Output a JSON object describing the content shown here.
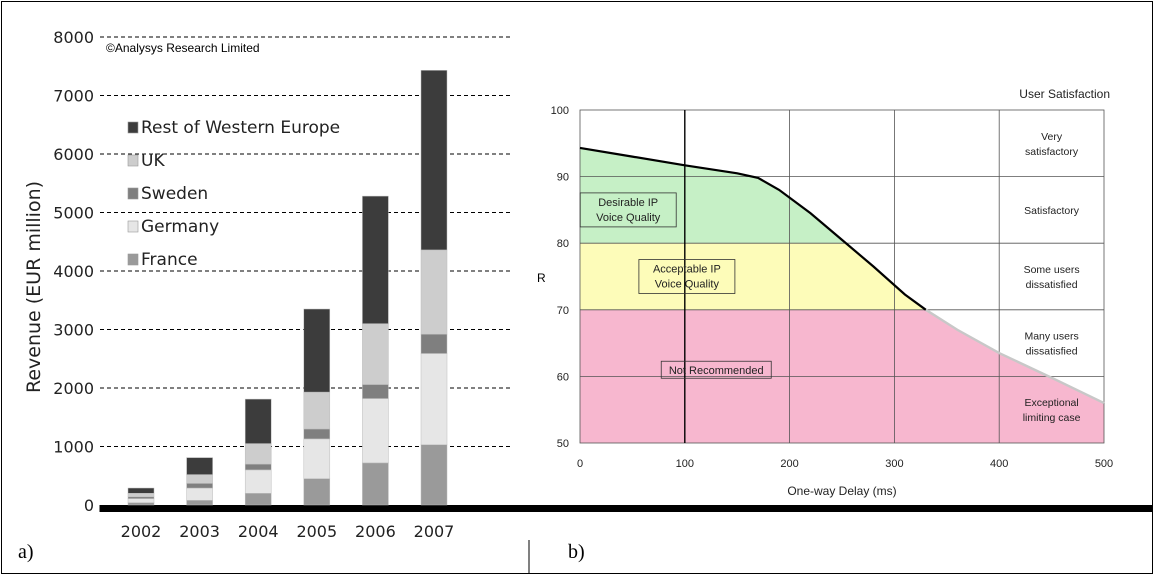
{
  "figure": {
    "label_a": "a)",
    "label_b": "b)",
    "color_border": "#000000"
  },
  "chart_data": [
    {
      "type": "bar",
      "stacked": true,
      "copyright": "©Analysys Research Limited",
      "ylabel": "Revenue (EUR million)",
      "ylim": [
        0,
        8000
      ],
      "yticks": [
        "0",
        "1000",
        "2000",
        "3000",
        "4000",
        "5000",
        "6000",
        "7000",
        "8000"
      ],
      "yticks_values": [
        0,
        1000,
        2000,
        3000,
        4000,
        5000,
        6000,
        7000,
        8000
      ],
      "grid": true,
      "legend_position": "top-left",
      "categories": [
        "2002",
        "2003",
        "2004",
        "2005",
        "2006",
        "2007"
      ],
      "series": [
        {
          "name": "France",
          "values": [
            40,
            80,
            200,
            450,
            720,
            1030
          ],
          "color": "#9a9a9a"
        },
        {
          "name": "Germany",
          "values": [
            70,
            210,
            400,
            680,
            1100,
            1560
          ],
          "color": "#e6e6e6"
        },
        {
          "name": "Sweden",
          "values": [
            30,
            80,
            100,
            170,
            240,
            330
          ],
          "color": "#7f7f7f"
        },
        {
          "name": "UK",
          "values": [
            60,
            150,
            350,
            630,
            1040,
            1440
          ],
          "color": "#cdcdcd"
        },
        {
          "name": "Rest of Western Europe",
          "values": [
            90,
            290,
            760,
            1420,
            2180,
            3070
          ],
          "color": "#3c3c3c"
        }
      ],
      "legend_order": [
        "Rest of Western Europe",
        "UK",
        "Sweden",
        "Germany",
        "France"
      ]
    },
    {
      "type": "line",
      "ylabel": "R",
      "xlabel": "One-way Delay (ms)",
      "xlim": [
        0,
        500
      ],
      "ylim": [
        50,
        100
      ],
      "xticks": [
        "0",
        "100",
        "200",
        "300",
        "400",
        "500"
      ],
      "xticks_values": [
        0,
        100,
        200,
        300,
        400,
        500
      ],
      "yticks": [
        "50",
        "60",
        "70",
        "80",
        "90",
        "100"
      ],
      "yticks_values": [
        50,
        60,
        70,
        80,
        90,
        100
      ],
      "grid": true,
      "right_header": "User Satisfaction",
      "satisfaction_levels": [
        {
          "label": [
            "Very",
            "satisfactory"
          ],
          "y": 95
        },
        {
          "label": [
            "Satisfactory"
          ],
          "y": 85
        },
        {
          "label": [
            "Some users",
            "dissatisfied"
          ],
          "y": 75
        },
        {
          "label": [
            "Many users",
            "dissatisfied"
          ],
          "y": 65
        },
        {
          "label": [
            "Exceptional",
            "limiting case"
          ],
          "y": 55
        }
      ],
      "regions": [
        {
          "label": [
            "Desirable IP",
            "Voice Quality"
          ],
          "color": "#c6f0c6",
          "y_from": 80,
          "label_at": [
            46,
            85
          ]
        },
        {
          "label": [
            "Acceptable IP",
            "Voice Quality"
          ],
          "color": "#fdfcb9",
          "y_from": 70,
          "y_to": 80,
          "label_at": [
            102,
            75
          ]
        },
        {
          "label": [
            "Not Recommended"
          ],
          "color": "#f7b7cf",
          "y_from": 50,
          "y_to": 70,
          "label_at": [
            130,
            61
          ]
        }
      ],
      "series": [
        {
          "name": "",
          "color": "#000000",
          "points": [
            [
              0,
              94.3
            ],
            [
              50,
              93.0
            ],
            [
              100,
              91.7
            ],
            [
              150,
              90.5
            ],
            [
              170,
              89.8
            ],
            [
              190,
              88.0
            ],
            [
              220,
              84.5
            ],
            [
              250,
              80.5
            ],
            [
              280,
              76.5
            ],
            [
              310,
              72.3
            ],
            [
              330,
              70.0
            ]
          ]
        },
        {
          "name": "",
          "color": "#c8c8c8",
          "points": [
            [
              330,
              70.0
            ],
            [
              360,
              67.0
            ],
            [
              400,
              63.5
            ],
            [
              450,
              59.8
            ],
            [
              500,
              56.0
            ]
          ]
        }
      ]
    }
  ]
}
